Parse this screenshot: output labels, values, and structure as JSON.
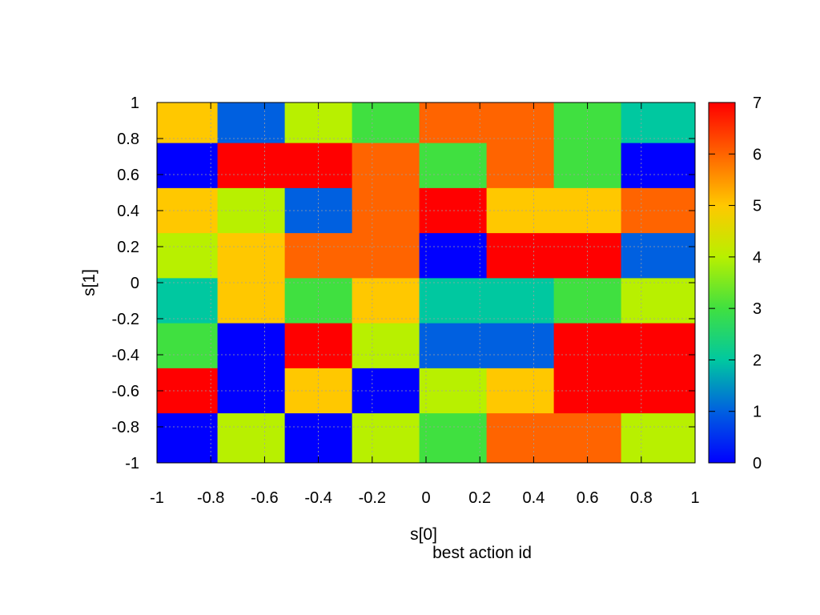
{
  "chart_data": {
    "type": "heatmap",
    "title": "",
    "xlabel": "s[0]",
    "ylabel": "s[1]",
    "footer_label": "best action id",
    "xlim": [
      -1,
      1
    ],
    "ylim": [
      -1,
      1
    ],
    "x_tick_labels": [
      "-1",
      "-0.8",
      "-0.6",
      "-0.4",
      "-0.2",
      "0",
      "0.2",
      "0.4",
      "0.6",
      "0.8",
      "1"
    ],
    "y_tick_labels": [
      "1",
      "0.8",
      "0.6",
      "0.4",
      "0.2",
      "0",
      "-0.2",
      "-0.4",
      "-0.6",
      "-0.8",
      "-1"
    ],
    "grid": true,
    "colorbar": {
      "range": [
        0,
        7
      ],
      "tick_labels": [
        "0",
        "1",
        "2",
        "3",
        "4",
        "5",
        "6",
        "7"
      ],
      "colors": [
        "#0000ff",
        "#0060e0",
        "#00c8a0",
        "#40e040",
        "#b8f000",
        "#ffc800",
        "#ff6400",
        "#ff0000"
      ]
    },
    "x_centers": [
      -0.9,
      -0.65,
      -0.4,
      -0.15,
      0.1,
      0.35,
      0.6,
      0.85
    ],
    "y_centers": [
      0.9,
      0.65,
      0.4,
      0.15,
      -0.1,
      -0.35,
      -0.6,
      -0.85
    ],
    "values": [
      [
        5,
        1,
        4,
        3,
        6,
        6,
        3,
        2
      ],
      [
        0,
        7,
        7,
        6,
        3,
        6,
        3,
        0
      ],
      [
        5,
        4,
        1,
        6,
        7,
        5,
        5,
        6
      ],
      [
        4,
        5,
        6,
        6,
        0,
        7,
        7,
        1
      ],
      [
        2,
        5,
        3,
        5,
        2,
        2,
        3,
        4
      ],
      [
        3,
        0,
        7,
        4,
        1,
        1,
        7,
        7
      ],
      [
        7,
        0,
        5,
        0,
        4,
        5,
        7,
        7
      ],
      [
        0,
        4,
        0,
        4,
        3,
        6,
        6,
        4
      ]
    ]
  }
}
